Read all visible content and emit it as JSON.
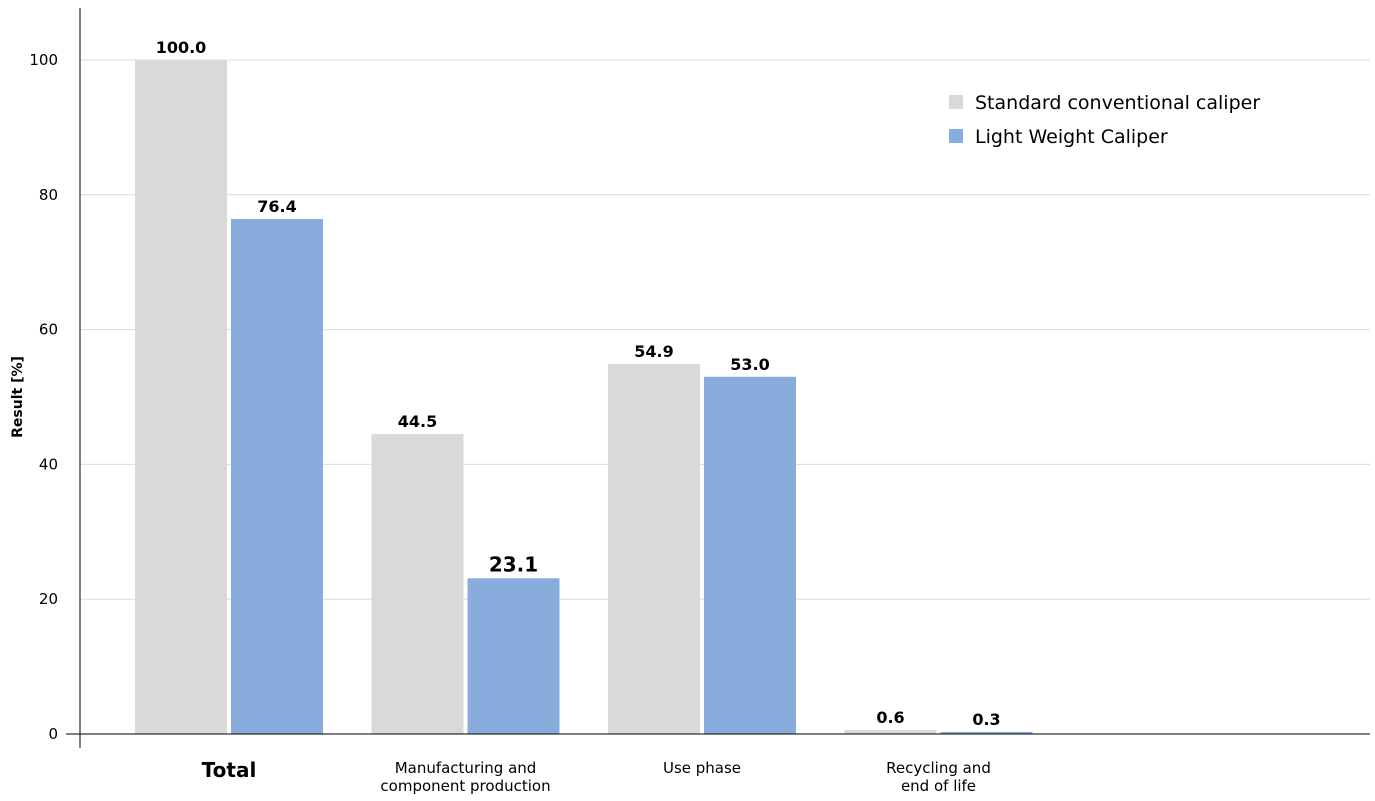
{
  "chart_data": {
    "type": "bar",
    "ylabel": "Result [%]",
    "xlabel": "",
    "ylim": [
      0,
      100
    ],
    "yticks": [
      "0",
      "20",
      "40",
      "60",
      "80",
      "100"
    ],
    "grid": true,
    "legend_position": "top-right",
    "categories": [
      {
        "lines": [
          "Total"
        ],
        "bold": true
      },
      {
        "lines": [
          "Manufacturing and",
          "component production"
        ],
        "bold": false
      },
      {
        "lines": [
          "Use phase"
        ],
        "bold": false
      },
      {
        "lines": [
          "Recycling and",
          "end of life"
        ],
        "bold": false
      }
    ],
    "series": [
      {
        "name": "Standard conventional caliper",
        "color": "#d9d9d9",
        "values": [
          100.0,
          44.5,
          54.9,
          0.6
        ],
        "labels": [
          "100.0",
          "44.5",
          "54.9",
          "0.6"
        ]
      },
      {
        "name": "Light Weight Caliper",
        "color": "#88acdb",
        "values": [
          76.4,
          23.1,
          53.0,
          0.3
        ],
        "labels": [
          "76.4",
          "23.1",
          "53.0",
          "0.3"
        ]
      }
    ],
    "emphasized_labels": [
      [],
      [
        1
      ]
    ]
  }
}
